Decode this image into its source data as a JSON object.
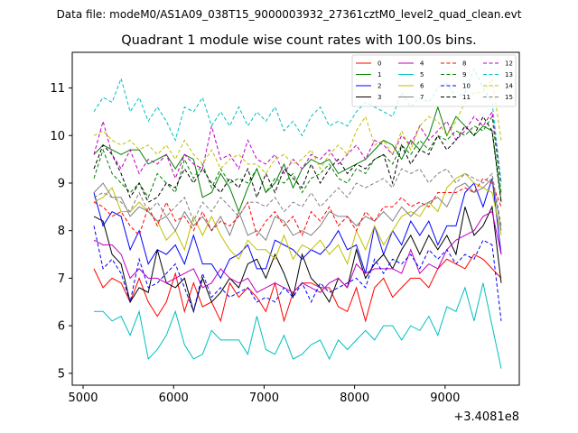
{
  "chart_data": {
    "type": "line",
    "suptitle": "Data file: modeM0/AS1A09_038T15_9000003932_27361cztM0_level2_quad_clean.evt",
    "title": "Quadrant 1 module wise count rates with 100.0s bins.",
    "xlabel": "",
    "ylabel": "",
    "x_offset_label": "+3.4081e8",
    "xlim": [
      4880,
      9820
    ],
    "ylim": [
      4.75,
      11.75
    ],
    "x_ticks": [
      5000,
      6000,
      7000,
      8000,
      9000
    ],
    "y_ticks": [
      5,
      6,
      7,
      8,
      9,
      10,
      11
    ],
    "legend_position": "top-right",
    "x": [
      5120,
      5220,
      5320,
      5420,
      5520,
      5620,
      5720,
      5820,
      5920,
      6020,
      6120,
      6220,
      6320,
      6420,
      6520,
      6620,
      6720,
      6820,
      6920,
      7020,
      7120,
      7220,
      7320,
      7420,
      7520,
      7620,
      7720,
      7820,
      7920,
      8020,
      8120,
      8220,
      8320,
      8420,
      8520,
      8620,
      8720,
      8820,
      8920,
      9020,
      9120,
      9220,
      9320,
      9420,
      9520,
      9620
    ],
    "series": [
      {
        "name": "0",
        "color": "#ff0000",
        "dashed": false,
        "values": [
          7.2,
          6.8,
          7.0,
          6.9,
          6.5,
          7.0,
          6.5,
          6.2,
          6.5,
          7.1,
          6.3,
          6.9,
          6.4,
          6.5,
          6.1,
          6.9,
          6.6,
          6.8,
          6.6,
          6.3,
          6.9,
          6.1,
          6.7,
          6.9,
          6.9,
          6.8,
          6.8,
          6.4,
          6.3,
          6.8,
          6.1,
          6.8,
          7.0,
          6.6,
          6.8,
          7.0,
          7.0,
          6.8,
          7.2,
          7.4,
          7.3,
          7.2,
          7.5,
          7.4,
          7.2,
          7.0
        ]
      },
      {
        "name": "1",
        "color": "#008000",
        "dashed": false,
        "values": [
          9.6,
          9.8,
          9.7,
          9.6,
          9.7,
          9.7,
          9.4,
          9.5,
          9.6,
          9.3,
          9.6,
          9.5,
          8.7,
          8.8,
          9.2,
          8.9,
          8.4,
          8.9,
          9.3,
          8.8,
          9.0,
          9.4,
          8.9,
          9.3,
          9.5,
          9.4,
          9.5,
          9.2,
          9.3,
          9.4,
          9.5,
          9.7,
          9.9,
          9.8,
          9.5,
          9.9,
          9.7,
          10.0,
          10.6,
          10.0,
          10.4,
          10.2,
          10.0,
          10.2,
          10.1,
          8.6
        ]
      },
      {
        "name": "2",
        "color": "#0000ff",
        "dashed": false,
        "values": [
          8.8,
          8.1,
          8.4,
          8.3,
          7.6,
          8.0,
          7.3,
          7.6,
          7.5,
          7.7,
          7.3,
          7.9,
          7.3,
          7.3,
          7.0,
          7.4,
          7.5,
          7.7,
          7.2,
          7.2,
          7.8,
          7.7,
          7.6,
          7.4,
          7.6,
          7.5,
          7.7,
          8.0,
          7.6,
          7.7,
          7.1,
          8.1,
          7.5,
          8.0,
          7.7,
          8.2,
          7.9,
          8.2,
          7.7,
          8.1,
          8.1,
          8.8,
          9.0,
          8.5,
          9.1,
          7.5
        ]
      },
      {
        "name": "3",
        "color": "#000000",
        "dashed": false,
        "values": [
          8.3,
          8.2,
          7.5,
          7.3,
          6.5,
          6.8,
          6.7,
          7.6,
          6.9,
          6.8,
          7.0,
          6.3,
          7.0,
          6.5,
          6.7,
          7.0,
          6.8,
          7.3,
          7.4,
          7.0,
          7.5,
          7.1,
          6.6,
          7.5,
          7.0,
          6.8,
          6.5,
          7.0,
          6.8,
          7.6,
          7.0,
          7.3,
          7.5,
          7.2,
          7.6,
          7.9,
          7.5,
          7.9,
          7.6,
          7.9,
          7.5,
          8.5,
          7.9,
          8.1,
          8.5,
          6.9
        ]
      },
      {
        "name": "4",
        "color": "#bf00bf",
        "dashed": false,
        "values": [
          7.8,
          7.7,
          7.7,
          7.5,
          7.0,
          7.2,
          7.0,
          7.0,
          6.9,
          7.0,
          7.1,
          7.2,
          6.8,
          6.9,
          7.2,
          7.0,
          6.9,
          7.0,
          6.7,
          6.8,
          6.9,
          6.8,
          6.7,
          6.9,
          6.8,
          6.7,
          6.9,
          7.0,
          6.8,
          7.3,
          7.1,
          7.2,
          7.2,
          7.2,
          7.1,
          7.6,
          7.1,
          7.3,
          7.2,
          7.6,
          7.8,
          7.9,
          8.0,
          8.3,
          8.4,
          7.5
        ]
      },
      {
        "name": "5",
        "color": "#00bfbf",
        "dashed": false,
        "values": [
          6.3,
          6.3,
          6.1,
          6.2,
          5.8,
          6.3,
          5.3,
          5.5,
          5.8,
          6.3,
          5.6,
          5.3,
          5.4,
          5.9,
          5.7,
          5.7,
          5.7,
          5.4,
          6.2,
          5.5,
          5.4,
          5.8,
          5.3,
          5.4,
          5.6,
          5.7,
          5.3,
          5.7,
          5.5,
          5.7,
          5.9,
          5.7,
          6.0,
          6.0,
          5.7,
          6.0,
          5.9,
          6.2,
          5.8,
          6.4,
          6.3,
          6.8,
          6.1,
          6.9,
          6.0,
          5.1
        ]
      },
      {
        "name": "6",
        "color": "#bfbf00",
        "dashed": false,
        "values": [
          8.6,
          8.7,
          8.9,
          8.4,
          8.4,
          8.6,
          8.4,
          8.2,
          7.8,
          8.0,
          7.6,
          8.3,
          7.9,
          8.3,
          7.9,
          7.6,
          7.4,
          7.8,
          7.6,
          7.6,
          7.4,
          7.9,
          7.4,
          7.7,
          7.6,
          7.8,
          7.5,
          7.7,
          7.3,
          8.0,
          7.6,
          8.1,
          7.7,
          8.0,
          8.3,
          8.4,
          8.3,
          8.6,
          8.4,
          8.9,
          9.1,
          9.2,
          9.0,
          8.9,
          8.8,
          7.9
        ]
      },
      {
        "name": "7",
        "color": "#808080",
        "dashed": false,
        "values": [
          8.8,
          9.0,
          8.7,
          8.7,
          8.3,
          8.5,
          8.4,
          8.2,
          8.3,
          8.0,
          8.4,
          8.1,
          8.3,
          8.0,
          8.3,
          7.9,
          8.4,
          7.9,
          8.0,
          7.8,
          8.3,
          8.2,
          7.9,
          8.0,
          7.9,
          8.1,
          8.4,
          8.3,
          8.3,
          8.1,
          8.3,
          8.2,
          8.4,
          8.2,
          8.5,
          8.3,
          8.5,
          8.6,
          8.7,
          8.5,
          8.9,
          9.0,
          8.8,
          8.9,
          9.1,
          8.0
        ]
      },
      {
        "name": "8",
        "color": "#ff0000",
        "dashed": true,
        "values": [
          8.6,
          8.5,
          8.3,
          8.4,
          8.1,
          7.9,
          8.5,
          8.1,
          8.6,
          8.2,
          8.3,
          8.0,
          8.4,
          8.0,
          8.2,
          8.1,
          8.3,
          8.6,
          7.9,
          8.2,
          8.4,
          8.1,
          8.3,
          7.9,
          8.4,
          8.2,
          8.5,
          8.1,
          8.3,
          8.0,
          8.4,
          8.2,
          8.5,
          8.5,
          8.7,
          8.5,
          8.6,
          8.5,
          8.8,
          8.8,
          8.8,
          8.9,
          8.8,
          9.1,
          9.0,
          8.5
        ]
      },
      {
        "name": "9",
        "color": "#008000",
        "dashed": true,
        "values": [
          9.1,
          9.7,
          9.2,
          9.0,
          8.8,
          9.0,
          8.7,
          9.2,
          9.0,
          8.8,
          9.5,
          9.1,
          9.4,
          8.9,
          9.3,
          9.0,
          9.1,
          9.0,
          9.3,
          8.8,
          9.1,
          9.0,
          9.2,
          8.8,
          9.1,
          9.2,
          9.4,
          9.1,
          9.0,
          9.3,
          9.2,
          9.5,
          9.6,
          9.4,
          9.8,
          9.6,
          9.9,
          9.7,
          10.0,
          9.9,
          10.1,
          10.0,
          10.2,
          10.1,
          10.4,
          8.8
        ]
      },
      {
        "name": "10",
        "color": "#0000ff",
        "dashed": true,
        "values": [
          8.1,
          7.2,
          7.4,
          7.1,
          6.5,
          7.4,
          6.8,
          6.9,
          7.1,
          7.3,
          6.8,
          6.3,
          7.1,
          6.6,
          6.8,
          6.6,
          6.7,
          6.8,
          6.5,
          6.6,
          6.5,
          6.8,
          6.6,
          6.9,
          6.5,
          6.9,
          6.7,
          6.8,
          6.9,
          7.0,
          6.8,
          7.4,
          7.1,
          7.4,
          7.3,
          7.5,
          7.2,
          7.6,
          7.4,
          7.6,
          7.3,
          7.5,
          7.4,
          7.8,
          7.7,
          6.1
        ]
      },
      {
        "name": "11",
        "color": "#000000",
        "dashed": true,
        "values": [
          9.3,
          9.8,
          9.6,
          9.2,
          8.7,
          9.0,
          8.6,
          8.7,
          9.0,
          8.9,
          9.3,
          9.0,
          9.3,
          9.0,
          8.8,
          9.1,
          8.9,
          9.3,
          8.7,
          9.2,
          8.8,
          9.3,
          9.1,
          8.9,
          9.4,
          9.0,
          9.3,
          9.5,
          9.2,
          9.4,
          9.3,
          9.5,
          9.6,
          9.0,
          9.8,
          9.4,
          9.7,
          9.6,
          10.0,
          9.7,
          9.9,
          10.2,
          10.0,
          10.4,
          10.1,
          8.6
        ]
      },
      {
        "name": "12",
        "color": "#bf00bf",
        "dashed": true,
        "values": [
          9.6,
          10.3,
          9.6,
          9.3,
          9.7,
          9.2,
          9.5,
          9.4,
          9.6,
          9.1,
          9.6,
          9.4,
          9.3,
          10.2,
          9.5,
          9.6,
          9.3,
          9.9,
          9.5,
          9.4,
          9.6,
          9.2,
          9.5,
          9.3,
          9.6,
          9.5,
          9.7,
          9.4,
          9.6,
          9.8,
          9.5,
          9.9,
          9.8,
          9.6,
          10.0,
          9.8,
          10.2,
          9.9,
          10.1,
          10.3,
          9.9,
          10.1,
          10.4,
          10.2,
          10.5,
          9.0
        ]
      },
      {
        "name": "13",
        "color": "#00bfbf",
        "dashed": true,
        "values": [
          10.5,
          10.8,
          10.7,
          11.2,
          10.5,
          10.8,
          10.3,
          10.6,
          10.3,
          9.9,
          10.6,
          10.5,
          10.8,
          10.2,
          10.5,
          10.2,
          10.6,
          10.2,
          10.5,
          10.3,
          10.6,
          10.1,
          10.3,
          10.0,
          10.4,
          10.6,
          10.2,
          10.3,
          10.2,
          10.5,
          10.7,
          10.6,
          10.5,
          10.4,
          10.9,
          10.6,
          10.8,
          10.7,
          11.0,
          11.1,
          10.8,
          10.9,
          11.4,
          11.0,
          10.7,
          9.0
        ]
      },
      {
        "name": "14",
        "color": "#bfbf00",
        "dashed": true,
        "values": [
          10.0,
          10.1,
          9.9,
          9.8,
          9.9,
          9.7,
          9.8,
          9.6,
          9.8,
          9.5,
          9.9,
          9.6,
          9.4,
          9.7,
          9.3,
          9.5,
          9.6,
          9.4,
          9.4,
          9.2,
          9.5,
          9.6,
          9.4,
          9.5,
          9.7,
          9.3,
          9.6,
          9.8,
          9.6,
          10.1,
          10.4,
          9.8,
          9.9,
          9.6,
          10.1,
          9.7,
          10.2,
          10.4,
          10.3,
          10.0,
          10.3,
          10.7,
          10.9,
          10.9,
          11.2,
          9.9
        ]
      },
      {
        "name": "15",
        "color": "#808080",
        "dashed": true,
        "values": [
          8.7,
          8.8,
          8.7,
          8.6,
          8.4,
          8.8,
          8.4,
          8.6,
          8.3,
          8.5,
          8.7,
          8.2,
          8.6,
          8.4,
          8.7,
          8.5,
          8.3,
          8.6,
          8.6,
          8.5,
          8.7,
          8.4,
          8.6,
          8.5,
          8.8,
          8.5,
          8.7,
          8.9,
          8.7,
          9.0,
          8.9,
          9.0,
          9.1,
          8.9,
          9.3,
          9.2,
          9.3,
          9.0,
          9.2,
          9.3,
          9.0,
          9.2,
          9.1,
          9.0,
          9.2,
          8.1
        ]
      }
    ]
  }
}
